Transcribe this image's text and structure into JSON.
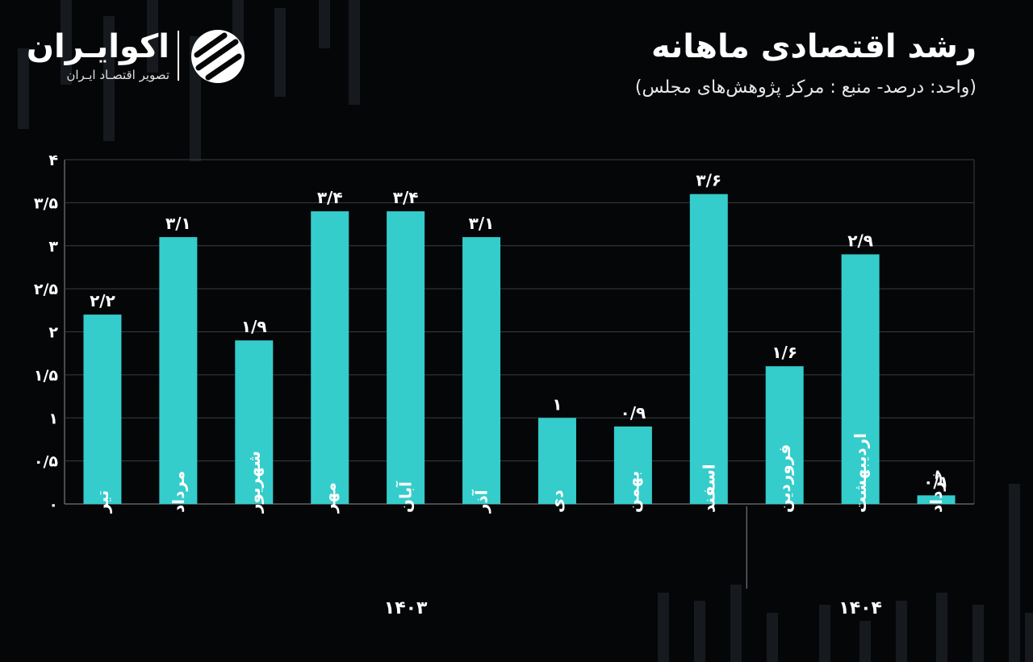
{
  "header": {
    "title": "رشد اقتصادی ماهانه",
    "subtitle": "(واحد: درصد- منبع : مرکز پژوهش‌های مجلس)"
  },
  "logo": {
    "name": "اکوایـران",
    "tagline": "تصویر اقتصـاد ایـران",
    "icon": "ecoiran-logo-icon"
  },
  "colors": {
    "background": "#050608",
    "bar": "#35cccc",
    "grid": "#3a3d42",
    "text": "#ffffff"
  },
  "chart_data": {
    "type": "bar",
    "categories": [
      "تیر",
      "مرداد",
      "شهریور",
      "مهر",
      "آبان",
      "آذر",
      "دی",
      "بهمن",
      "اسفند",
      "فروردین",
      "اردیبهشت",
      "خرداد"
    ],
    "values": [
      2.2,
      3.1,
      1.9,
      3.4,
      3.4,
      3.1,
      1,
      0.9,
      3.6,
      1.6,
      2.9,
      0.1
    ],
    "value_labels": [
      "۲/۲",
      "۳/۱",
      "۱/۹",
      "۳/۴",
      "۳/۴",
      "۳/۱",
      "۱",
      "۰/۹",
      "۳/۶",
      "۱/۶",
      "۲/۹",
      "۰/۱"
    ],
    "ylim": [
      0,
      4
    ],
    "yticks": [
      0,
      0.5,
      1,
      1.5,
      2,
      2.5,
      3,
      3.5,
      4
    ],
    "ytick_labels": [
      "۰",
      "۰/۵",
      "۱",
      "۱/۵",
      "۲",
      "۲/۵",
      "۳",
      "۳/۵",
      "۴"
    ],
    "groups": [
      {
        "label": "۱۴۰۳",
        "start": 0,
        "end": 8
      },
      {
        "label": "۱۴۰۴",
        "start": 9,
        "end": 11
      }
    ],
    "grid": true,
    "xlabel": "",
    "ylabel": ""
  }
}
